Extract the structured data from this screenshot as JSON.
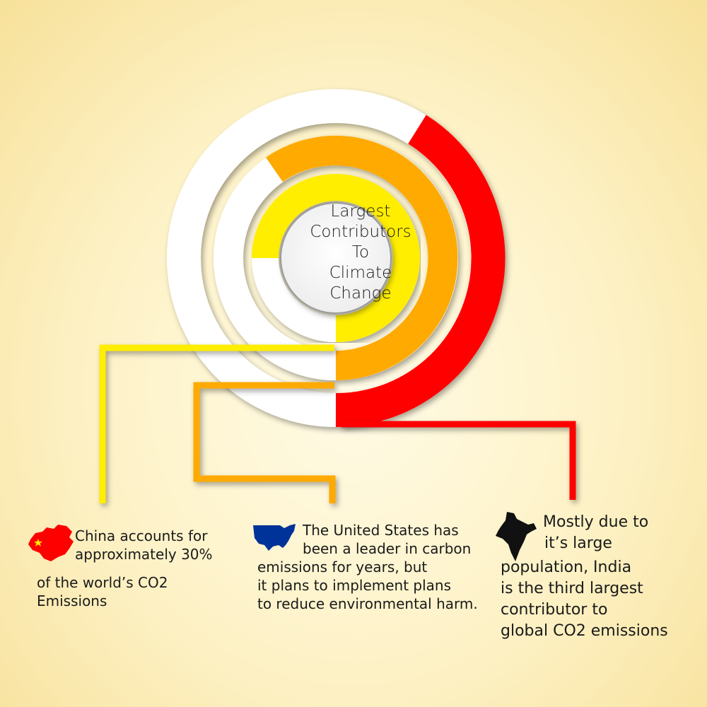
{
  "center": {
    "lines": [
      "Largest",
      "Contributors",
      "To",
      "Climate",
      "Change"
    ]
  },
  "contributors": [
    {
      "country": "China",
      "color": "#ff0000",
      "ring_color": "#ffee00",
      "ring_share": 0.3,
      "text_lines": [
        "China accounts for",
        "approximately 30%",
        "of the world’s CO2",
        "Emissions"
      ]
    },
    {
      "country": "United States",
      "color": "#003399",
      "ring_color": "#ffaa00",
      "text_lines": [
        "The United States has",
        "been a leader in carbon",
        "emissions for years, but",
        "it plans to implement plans",
        "to reduce environmental harm."
      ]
    },
    {
      "country": "India",
      "color": "#111111",
      "ring_color": "#ff0000",
      "text_lines": [
        "Mostly due to",
        "it’s large",
        "population, India",
        "is the third largest",
        "contributor to",
        "global CO2 emissions"
      ]
    }
  ],
  "icons": {
    "china": "china-map-icon",
    "usa": "usa-map-icon",
    "india": "india-map-icon"
  }
}
